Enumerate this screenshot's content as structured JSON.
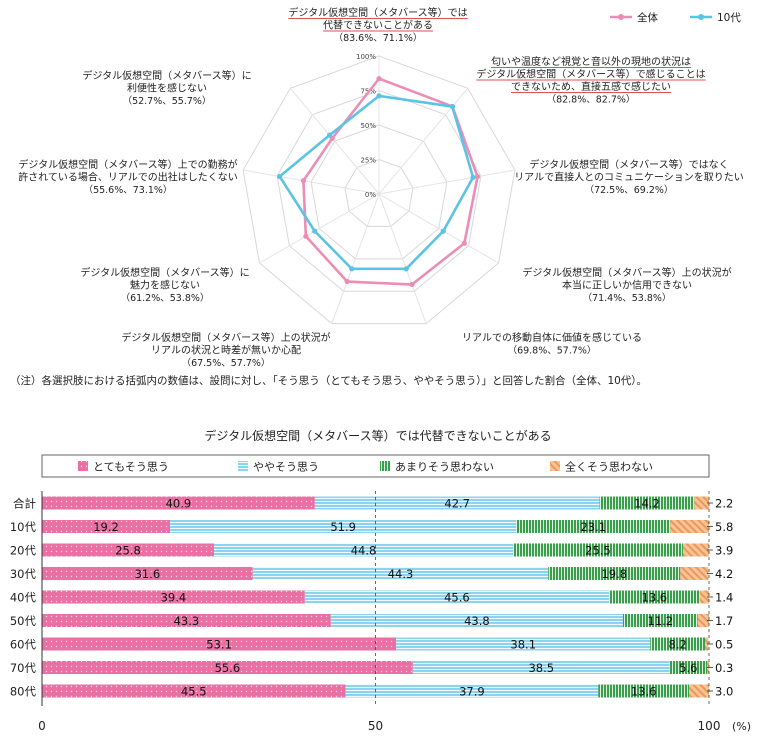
{
  "chart_data": [
    {
      "type": "radar",
      "legend_placement": "top-right",
      "radial_ticks": [
        "0%",
        "25%",
        "50%",
        "75%",
        "100%"
      ],
      "rlim": [
        0,
        100
      ],
      "series": [
        {
          "name": "全体",
          "color": "#ec8db5",
          "values": [
            83.6,
            82.8,
            72.5,
            71.4,
            69.8,
            67.5,
            61.2,
            55.6,
            52.7
          ]
        },
        {
          "name": "10代",
          "color": "#5cc3e4",
          "values": [
            71.1,
            82.7,
            69.2,
            53.8,
            57.7,
            57.7,
            53.8,
            73.1,
            55.7
          ]
        }
      ],
      "axes": [
        {
          "label": [
            "デジタル仮想空間（メタバース等）では",
            "代替できないことがある"
          ],
          "values_text": "（83.6%、71.1%）",
          "highlight": true
        },
        {
          "label": [
            "匂いや温度など視覚と音以外の現地の状況は",
            "デジタル仮想空間（メタバース等）で感じることは",
            "できないため、直接五感で感じたい"
          ],
          "values_text": "（82.8%、82.7%）",
          "highlight": true
        },
        {
          "label": [
            "デジタル仮想空間（メタバース等）ではなく",
            "リアルで直接人とのコミュニケーションを取りたい"
          ],
          "values_text": "（72.5%、69.2%）",
          "highlight": false
        },
        {
          "label": [
            "デジタル仮想空間（メタバース等）上の状況が",
            "本当に正しいか信用できない"
          ],
          "values_text": "（71.4%、53.8%）",
          "highlight": false
        },
        {
          "label": [
            "リアルでの移動自体に価値を感じている"
          ],
          "values_text": "（69.8%、57.7%）",
          "highlight": false
        },
        {
          "label": [
            "デジタル仮想空間（メタバース等）上の状況が",
            "リアルの状況と時差が無いか心配"
          ],
          "values_text": "（67.5%、57.7%）",
          "highlight": false
        },
        {
          "label": [
            "デジタル仮想空間（メタバース等）に",
            "魅力を感じない"
          ],
          "values_text": "（61.2%、53.8%）",
          "highlight": false
        },
        {
          "label": [
            "デジタル仮想空間（メタバース等）上での勤務が",
            "許されている場合、リアルでの出社はしたくない"
          ],
          "values_text": "（55.6%、73.1%）",
          "highlight": false
        },
        {
          "label": [
            "デジタル仮想空間（メタバース等）に",
            "利便性を感じない"
          ],
          "values_text": "（52.7%、55.7%）",
          "highlight": false
        }
      ],
      "note": "（注）各選択肢における括弧内の数値は、設問に対し、「そう思う（とてもそう思う、ややそう思う）」と回答した割合（全体、10代）。"
    },
    {
      "type": "stacked-bar-horizontal",
      "title": "デジタル仮想空間（メタバース等）では代替できないことがある",
      "categories": [
        "合計",
        "10代",
        "20代",
        "30代",
        "40代",
        "50代",
        "60代",
        "70代",
        "80代"
      ],
      "series": [
        {
          "name": "とてもそう思う",
          "color": "#ea6fa2",
          "values": [
            40.9,
            19.2,
            25.8,
            31.6,
            39.4,
            43.3,
            53.1,
            55.6,
            45.5
          ]
        },
        {
          "name": "ややそう思う",
          "color": "#6cc8ea",
          "values": [
            42.7,
            51.9,
            44.8,
            44.3,
            45.6,
            43.8,
            38.1,
            38.5,
            37.9
          ]
        },
        {
          "name": "あまりそう思わない",
          "color": "#3a9e4c",
          "values": [
            14.2,
            23.1,
            25.5,
            19.8,
            13.6,
            11.2,
            8.2,
            5.6,
            13.6
          ]
        },
        {
          "name": "全くそう思わない",
          "color": "#f0a565",
          "values": [
            2.2,
            5.8,
            3.9,
            4.2,
            1.4,
            1.7,
            0.5,
            0.3,
            3.0
          ]
        }
      ],
      "xlim": [
        0,
        100
      ],
      "x_ticks": [
        "0",
        "50",
        "100"
      ],
      "x_unit": "(%)",
      "grid": "dashed vertical line at 50"
    }
  ]
}
